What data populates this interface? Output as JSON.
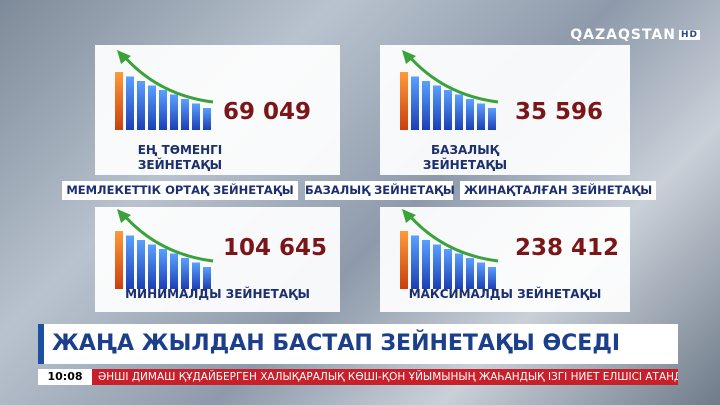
{
  "logo": {
    "name": "QAZAQSTAN",
    "badge": "HD"
  },
  "cards": [
    {
      "value": "69 049",
      "label": [
        "ЕҢ ТӨМЕНГІ",
        "ЗЕЙНЕТАҚЫ"
      ]
    },
    {
      "value": "35 596",
      "label": [
        "БАЗАЛЫҚ",
        "ЗЕЙНЕТАҚЫ"
      ]
    },
    {
      "value": "104 645",
      "label": [
        "МИНИМАЛДЫ ЗЕЙНЕТАҚЫ"
      ]
    },
    {
      "value": "238 412",
      "label": [
        "МАКСИМАЛДЫ ЗЕЙНЕТАҚЫ"
      ]
    }
  ],
  "pension_types": [
    "МЕМЛЕКЕТТІК ОРТАҚ ЗЕЙНЕТАҚЫ",
    "БАЗАЛЫҚ ЗЕЙНЕТАҚЫ",
    "ЖИНАҚТАЛҒАН ЗЕЙНЕТАҚЫ"
  ],
  "headline": "ЖАҢА ЖЫЛДАН БАСТАП ЗЕЙНЕТАҚЫ ӨСЕДІ",
  "ticker": {
    "time": "10:08",
    "text": "ӘНШІ ДИМАШ ҚҰДАЙБЕРГЕН ХАЛЫҚАРАЛЫҚ КӨШІ-ҚОН ҰЙЫМЫНЫҢ ЖАҺАНДЫҚ ІЗГІ НИЕТ ЕЛШІСІ АТАНДЫ"
  }
}
